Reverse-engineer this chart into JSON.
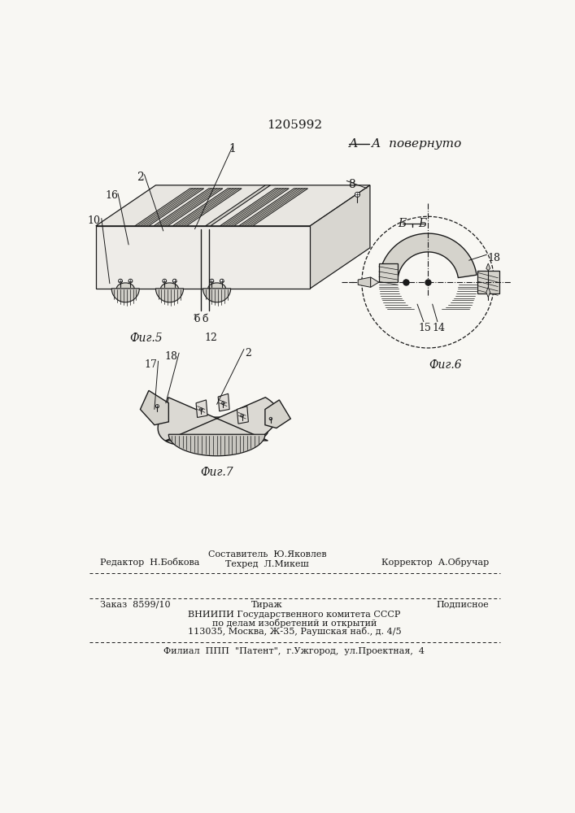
{
  "patent_number": "1205992",
  "section_label_A": "А – А  повернуто",
  "section_label_B": "Б – Б",
  "fig5_label": "Фиг.5",
  "fig6_label": "Фиг.6",
  "fig7_label": "Фиг.7",
  "bg_color": "#f8f7f3",
  "line_color": "#1a1a1a",
  "footer_line1_left": "Редактор  Н.Бобкова",
  "footer_line1_center_top": "Составитель  Ю.Яковлев",
  "footer_line1_center_bot": "Техред  Л.Микеш",
  "footer_line1_right": "Корректор  А.Обручар",
  "footer_line2_left": "Заказ  8599/10",
  "footer_line2_center": "Тираж",
  "footer_line2_right": "Подписное",
  "footer_filial": "Филиал  ППП  \"Патент\",  г.Ужгород,  ул.Проектная,  4"
}
